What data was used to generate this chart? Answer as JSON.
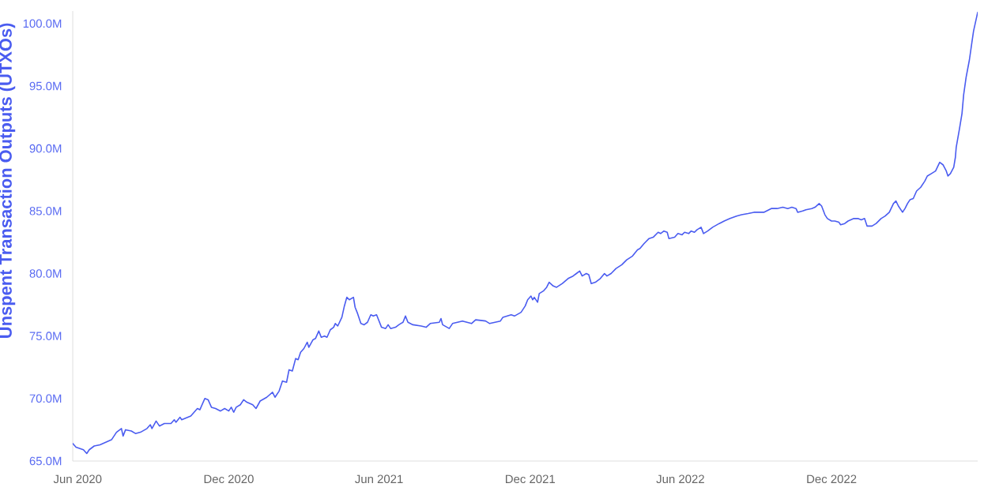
{
  "chart_data": {
    "type": "line",
    "ylabel": "Unspent Transaction Outputs (UTXOs)",
    "x": [
      "2020-05-26",
      "2020-05-30",
      "2020-06-08",
      "2020-06-12",
      "2020-06-15",
      "2020-06-21",
      "2020-06-28",
      "2020-07-05",
      "2020-07-12",
      "2020-07-18",
      "2020-07-24",
      "2020-07-26",
      "2020-07-29",
      "2020-08-05",
      "2020-08-10",
      "2020-08-16",
      "2020-08-24",
      "2020-08-28",
      "2020-08-30",
      "2020-09-04",
      "2020-09-08",
      "2020-09-14",
      "2020-09-22",
      "2020-09-26",
      "2020-09-28",
      "2020-10-03",
      "2020-10-05",
      "2020-10-16",
      "2020-10-20",
      "2020-10-24",
      "2020-10-27",
      "2020-11-02",
      "2020-11-06",
      "2020-11-10",
      "2020-11-15",
      "2020-11-21",
      "2020-11-26",
      "2020-12-01",
      "2020-12-04",
      "2020-12-07",
      "2020-12-10",
      "2020-12-15",
      "2020-12-19",
      "2020-12-23",
      "2020-12-30",
      "2021-01-03",
      "2021-01-08",
      "2021-01-16",
      "2021-01-23",
      "2021-01-26",
      "2021-01-31",
      "2021-02-04",
      "2021-02-09",
      "2021-02-12",
      "2021-02-16",
      "2021-02-20",
      "2021-02-23",
      "2021-02-26",
      "2021-03-02",
      "2021-03-06",
      "2021-03-08",
      "2021-03-13",
      "2021-03-16",
      "2021-03-20",
      "2021-03-23",
      "2021-03-27",
      "2021-03-30",
      "2021-04-03",
      "2021-04-07",
      "2021-04-09",
      "2021-04-12",
      "2021-04-17",
      "2021-04-20",
      "2021-04-23",
      "2021-04-26",
      "2021-05-01",
      "2021-05-03",
      "2021-05-06",
      "2021-05-10",
      "2021-05-14",
      "2021-05-18",
      "2021-05-22",
      "2021-05-25",
      "2021-05-29",
      "2021-06-04",
      "2021-06-09",
      "2021-06-12",
      "2021-06-15",
      "2021-06-21",
      "2021-06-25",
      "2021-06-30",
      "2021-07-03",
      "2021-07-06",
      "2021-07-12",
      "2021-07-22",
      "2021-07-28",
      "2021-08-02",
      "2021-08-13",
      "2021-08-15",
      "2021-08-17",
      "2021-08-25",
      "2021-08-29",
      "2021-09-10",
      "2021-09-21",
      "2021-09-26",
      "2021-10-08",
      "2021-10-13",
      "2021-10-26",
      "2021-10-29",
      "2021-11-08",
      "2021-11-12",
      "2021-11-20",
      "2021-11-25",
      "2021-11-28",
      "2021-12-02",
      "2021-12-04",
      "2021-12-06",
      "2021-12-10",
      "2021-12-12",
      "2021-12-17",
      "2021-12-21",
      "2021-12-24",
      "2021-12-29",
      "2022-01-02",
      "2022-01-09",
      "2022-01-16",
      "2022-01-22",
      "2022-01-26",
      "2022-01-30",
      "2022-02-02",
      "2022-02-07",
      "2022-02-10",
      "2022-02-13",
      "2022-02-18",
      "2022-02-24",
      "2022-03-01",
      "2022-03-04",
      "2022-03-09",
      "2022-03-15",
      "2022-03-22",
      "2022-03-28",
      "2022-04-04",
      "2022-04-10",
      "2022-04-13",
      "2022-04-18",
      "2022-04-24",
      "2022-04-29",
      "2022-05-05",
      "2022-05-08",
      "2022-05-12",
      "2022-05-16",
      "2022-05-18",
      "2022-05-25",
      "2022-05-29",
      "2022-06-03",
      "2022-06-06",
      "2022-06-11",
      "2022-06-14",
      "2022-06-18",
      "2022-06-21",
      "2022-06-26",
      "2022-06-29",
      "2022-07-04",
      "2022-07-10",
      "2022-07-18",
      "2022-07-24",
      "2022-07-31",
      "2022-08-08",
      "2022-08-14",
      "2022-08-22",
      "2022-08-29",
      "2022-09-10",
      "2022-09-19",
      "2022-09-26",
      "2022-10-03",
      "2022-10-09",
      "2022-10-14",
      "2022-10-19",
      "2022-10-21",
      "2022-10-27",
      "2022-10-31",
      "2022-11-07",
      "2022-11-11",
      "2022-11-16",
      "2022-11-19",
      "2022-11-23",
      "2022-11-26",
      "2022-12-01",
      "2022-12-05",
      "2022-12-10",
      "2022-12-12",
      "2022-12-17",
      "2022-12-21",
      "2022-12-28",
      "2023-01-02",
      "2023-01-06",
      "2023-01-10",
      "2023-01-13",
      "2023-01-19",
      "2023-01-24",
      "2023-01-30",
      "2023-02-04",
      "2023-02-09",
      "2023-02-14",
      "2023-02-17",
      "2023-02-20",
      "2023-02-25",
      "2023-02-28",
      "2023-03-03",
      "2023-03-06",
      "2023-03-10",
      "2023-03-14",
      "2023-03-19",
      "2023-03-24",
      "2023-03-27",
      "2023-04-01",
      "2023-04-06",
      "2023-04-11",
      "2023-04-15",
      "2023-04-19",
      "2023-04-21",
      "2023-04-24",
      "2023-04-28",
      "2023-04-30",
      "2023-05-01",
      "2023-05-05",
      "2023-05-08",
      "2023-05-10",
      "2023-05-13",
      "2023-05-17",
      "2023-05-20",
      "2023-05-22",
      "2023-05-27"
    ],
    "series": [
      {
        "color": "#4a5cf0",
        "values": [
          66.4,
          66.1,
          65.9,
          65.6,
          65.9,
          66.2,
          66.3,
          66.5,
          66.7,
          67.3,
          67.6,
          67.0,
          67.5,
          67.4,
          67.2,
          67.3,
          67.6,
          67.9,
          67.6,
          68.2,
          67.8,
          68.0,
          68.0,
          68.3,
          68.1,
          68.5,
          68.3,
          68.6,
          68.9,
          69.2,
          69.1,
          70.0,
          69.9,
          69.3,
          69.2,
          69.0,
          69.2,
          69.0,
          69.3,
          68.9,
          69.3,
          69.5,
          69.9,
          69.7,
          69.5,
          69.2,
          69.8,
          70.1,
          70.5,
          70.1,
          70.6,
          71.4,
          71.3,
          72.3,
          72.2,
          73.2,
          73.1,
          73.7,
          74.0,
          74.5,
          74.1,
          74.7,
          74.8,
          75.4,
          74.9,
          75.0,
          74.9,
          75.5,
          75.7,
          76.0,
          75.8,
          76.5,
          77.4,
          78.1,
          77.9,
          78.1,
          77.3,
          76.8,
          76.0,
          75.9,
          76.1,
          76.7,
          76.6,
          76.7,
          75.7,
          75.6,
          75.9,
          75.6,
          75.7,
          75.9,
          76.1,
          76.6,
          76.1,
          75.9,
          75.8,
          75.7,
          76.0,
          76.1,
          76.4,
          75.9,
          75.6,
          76.0,
          76.2,
          76.0,
          76.3,
          76.2,
          76.0,
          76.2,
          76.5,
          76.7,
          76.6,
          76.9,
          77.4,
          77.9,
          78.2,
          77.9,
          78.1,
          77.7,
          78.4,
          78.6,
          78.9,
          79.3,
          79.0,
          78.9,
          79.2,
          79.6,
          79.8,
          80.0,
          80.2,
          79.8,
          80.0,
          79.9,
          79.2,
          79.3,
          79.6,
          80.0,
          79.8,
          80.0,
          80.4,
          80.7,
          81.1,
          81.4,
          81.9,
          82.0,
          82.4,
          82.8,
          82.9,
          83.3,
          83.2,
          83.4,
          83.3,
          82.8,
          82.9,
          83.2,
          83.1,
          83.3,
          83.2,
          83.4,
          83.3,
          83.5,
          83.7,
          83.2,
          83.4,
          83.7,
          84.0,
          84.2,
          84.4,
          84.6,
          84.7,
          84.8,
          84.9,
          84.9,
          85.2,
          85.2,
          85.3,
          85.2,
          85.3,
          85.2,
          84.9,
          85.0,
          85.1,
          85.2,
          85.3,
          85.6,
          85.4,
          84.7,
          84.4,
          84.2,
          84.2,
          84.1,
          83.9,
          84.0,
          84.2,
          84.4,
          84.4,
          84.3,
          84.4,
          83.8,
          83.8,
          84.0,
          84.4,
          84.6,
          84.9,
          85.6,
          85.8,
          85.4,
          84.9,
          85.2,
          85.6,
          85.9,
          86.0,
          86.6,
          86.9,
          87.4,
          87.8,
          88.0,
          88.2,
          88.9,
          88.7,
          88.2,
          87.8,
          88.0,
          88.5,
          89.3,
          90.1,
          91.6,
          92.8,
          94.3,
          95.7,
          97.1,
          98.5,
          99.4,
          100.9
        ]
      }
    ],
    "xlim": [
      "2020-05-26",
      "2023-05-27"
    ],
    "ylim": [
      65,
      101
    ],
    "xticks": [
      {
        "value": "2020-06-01",
        "label": "Jun 2020"
      },
      {
        "value": "2020-12-01",
        "label": "Dec 2020"
      },
      {
        "value": "2021-06-01",
        "label": "Jun 2021"
      },
      {
        "value": "2021-12-01",
        "label": "Dec 2021"
      },
      {
        "value": "2022-06-01",
        "label": "Jun 2022"
      },
      {
        "value": "2022-12-01",
        "label": "Dec 2022"
      }
    ],
    "yticks": [
      {
        "value": 65,
        "label": "65.0M"
      },
      {
        "value": 70,
        "label": "70.0M"
      },
      {
        "value": 75,
        "label": "75.0M"
      },
      {
        "value": 80,
        "label": "80.0M"
      },
      {
        "value": 85,
        "label": "85.0M"
      },
      {
        "value": 90,
        "label": "90.0M"
      },
      {
        "value": 95,
        "label": "95.0M"
      },
      {
        "value": 100,
        "label": "100.0M"
      }
    ],
    "line_style": "solid"
  }
}
